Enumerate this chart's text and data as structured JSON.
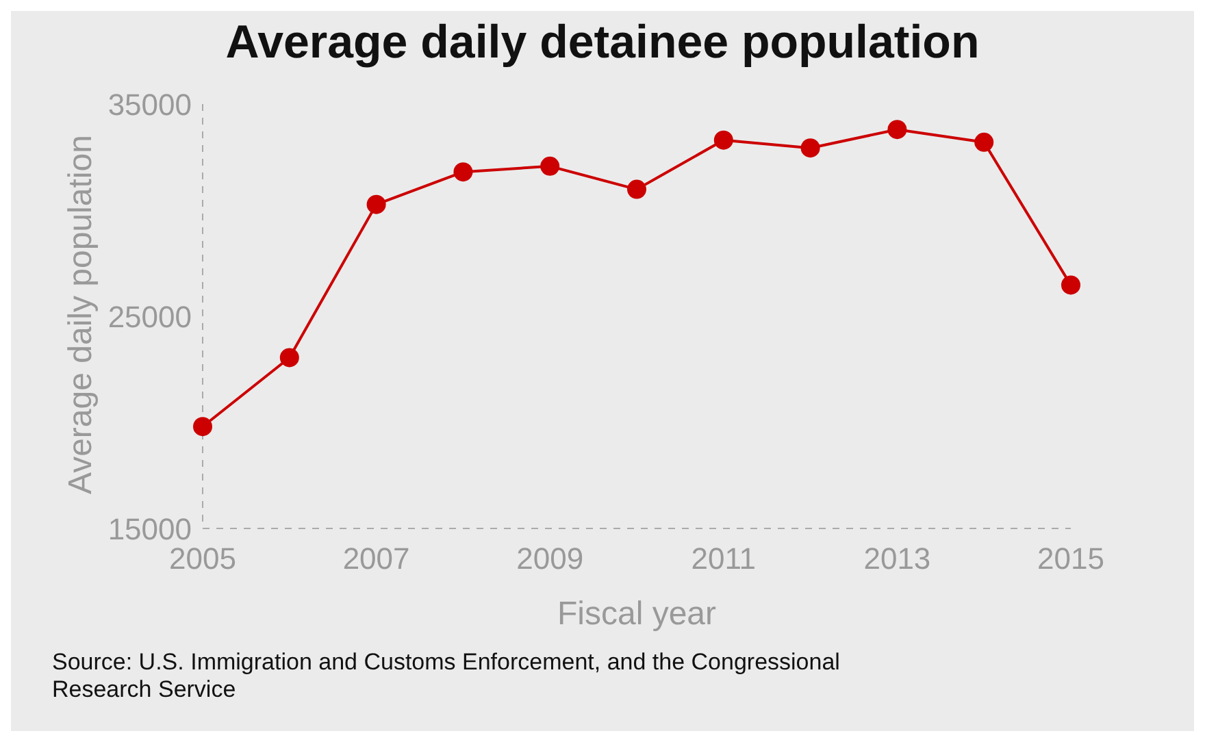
{
  "chart_data": {
    "type": "line",
    "title": "Average daily detainee population",
    "xlabel": "Fiscal year",
    "ylabel": "Average daily population",
    "x": [
      2005,
      2006,
      2007,
      2008,
      2009,
      2010,
      2011,
      2012,
      2013,
      2014,
      2015
    ],
    "series": [
      {
        "color": "#cc0000",
        "values": [
          19800,
          23050,
          30270,
          31800,
          32070,
          30980,
          33300,
          32930,
          33800,
          33200,
          26470
        ]
      }
    ],
    "xlim": [
      2005,
      2015
    ],
    "xticks": [
      2005,
      2007,
      2009,
      2011,
      2013,
      2015
    ],
    "ylim": [
      15000,
      35000
    ],
    "yticks": [
      15000,
      25000,
      35000
    ],
    "grid": false,
    "marker": "circle",
    "line_style": "solid",
    "annotations": [
      "Source: U.S. Immigration and Customs Enforcement, and the Congressional Research Service"
    ]
  }
}
